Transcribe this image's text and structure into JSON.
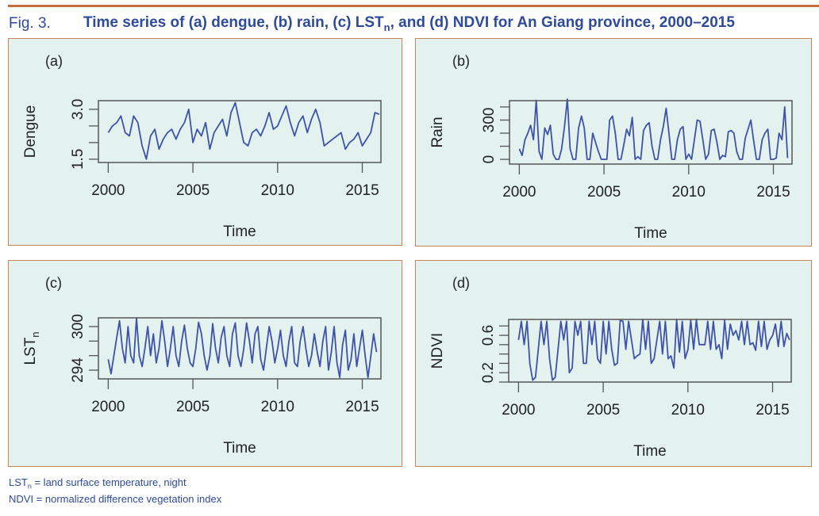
{
  "figure": {
    "label": "Fig. 3.",
    "title_parts": [
      "Time series of (a) dengue, (b) rain, (c) LST",
      "n",
      ", and (d) NDVI for An Giang province, 2000–2015"
    ],
    "footnotes": [
      {
        "term": "LST",
        "sub": "n",
        "text": " = land surface temperature, night"
      },
      {
        "term": "NDVI",
        "sub": "",
        "text": " = normalized difference vegetation index"
      }
    ]
  },
  "colors": {
    "line": "#3d52a8",
    "panel_bg": "#e3f1ef",
    "border": "#c88555",
    "title": "#2e4a9a"
  },
  "chart_data": [
    {
      "type": "line",
      "panel": "(a)",
      "xlabel": "Time",
      "ylabel": "Dengue",
      "x_start": 2000,
      "x_step": 0.25,
      "xlim": [
        1999.42,
        2016.1
      ],
      "xticks": [
        2000,
        2005,
        2010,
        2015
      ],
      "ylim": [
        1.4,
        3.26
      ],
      "yticks": [
        1.5,
        2.0,
        2.5,
        3.0
      ],
      "ytick_labels": [
        [
          "1.5",
          1.5
        ],
        [
          "3.0",
          3.0
        ]
      ],
      "values": [
        2.3,
        2.5,
        2.6,
        2.8,
        2.3,
        2.2,
        2.8,
        2.6,
        1.9,
        1.5,
        2.2,
        2.4,
        1.8,
        2.1,
        2.3,
        2.4,
        2.1,
        2.4,
        2.6,
        3.0,
        2.0,
        2.4,
        2.2,
        2.6,
        1.8,
        2.3,
        2.5,
        2.7,
        2.2,
        2.9,
        3.2,
        2.6,
        2.0,
        1.9,
        2.3,
        2.4,
        2.2,
        2.5,
        2.9,
        2.4,
        2.5,
        2.8,
        3.1,
        2.6,
        2.2,
        2.6,
        2.8,
        2.3,
        2.7,
        3.0,
        2.6,
        1.9,
        2.0,
        2.1,
        2.2,
        2.3,
        1.8,
        2.0,
        2.1,
        2.3,
        1.9,
        2.1,
        2.3,
        2.9,
        2.85
      ]
    },
    {
      "type": "line",
      "panel": "(b)",
      "xlabel": "Time",
      "ylabel": "Rain",
      "x_start": 2000,
      "x_step": 0.1667,
      "xlim": [
        1999.42,
        2016.1
      ],
      "xticks": [
        2000,
        2005,
        2010,
        2015
      ],
      "ylim": [
        -36,
        448
      ],
      "yticks": [
        0,
        100,
        200,
        300,
        400
      ],
      "ytick_labels": [
        [
          "0",
          0
        ],
        [
          "300",
          300
        ]
      ],
      "values": [
        80,
        30,
        150,
        200,
        260,
        150,
        450,
        60,
        0,
        240,
        190,
        260,
        40,
        0,
        0,
        80,
        250,
        460,
        80,
        0,
        0,
        240,
        330,
        240,
        0,
        0,
        200,
        130,
        60,
        0,
        0,
        0,
        300,
        330,
        200,
        0,
        0,
        110,
        230,
        180,
        320,
        0,
        20,
        0,
        220,
        260,
        280,
        100,
        0,
        0,
        150,
        250,
        390,
        200,
        0,
        0,
        150,
        230,
        250,
        0,
        40,
        0,
        150,
        300,
        290,
        150,
        0,
        40,
        220,
        230,
        130,
        0,
        30,
        20,
        210,
        220,
        200,
        60,
        0,
        0,
        160,
        230,
        300,
        140,
        0,
        0,
        150,
        200,
        230,
        0,
        0,
        10,
        200,
        150,
        400,
        10
      ]
    },
    {
      "type": "line",
      "panel": "(c)",
      "xlabel": "Time",
      "ylabel": "LST",
      "ylabel_sub": "n",
      "x_start": 2000,
      "x_step": 0.1667,
      "xlim": [
        1999.42,
        2016.1
      ],
      "xticks": [
        2000,
        2005,
        2010,
        2015
      ],
      "ylim": [
        292.8,
        301.2
      ],
      "yticks": [
        294,
        296,
        298,
        300
      ],
      "ytick_labels": [
        [
          "294",
          294
        ],
        [
          "300",
          300
        ]
      ],
      "values": [
        295.5,
        293.5,
        296,
        298.5,
        300.8,
        297,
        295,
        300,
        296,
        295,
        301.2,
        296,
        294.5,
        297,
        300,
        296,
        299,
        295,
        297,
        300.8,
        298,
        294.5,
        297,
        300,
        296,
        294.5,
        298,
        300.2,
        297,
        295,
        294.5,
        297,
        300.6,
        299,
        296,
        294,
        296,
        300.4,
        297,
        295,
        298.5,
        300,
        296,
        294.5,
        299,
        300.5,
        296,
        294.5,
        297,
        300.5,
        298,
        295,
        299,
        300,
        295.5,
        294,
        297,
        300,
        298,
        295,
        297,
        299.5,
        296,
        294.5,
        298,
        300,
        295,
        294.5,
        298,
        300,
        297,
        294.5,
        296,
        299,
        296.5,
        294.5,
        298,
        300,
        294,
        296.5,
        300,
        295,
        293,
        297.5,
        299.5,
        294,
        295.5,
        299,
        294.5,
        297,
        299.5,
        296,
        293,
        296,
        299,
        296.5
      ]
    },
    {
      "type": "line",
      "panel": "(d)",
      "xlabel": "Time",
      "ylabel": "NDVI",
      "x_start": 2000,
      "x_step": 0.1667,
      "xlim": [
        1999.42,
        2016.1
      ],
      "xticks": [
        2000,
        2005,
        2010,
        2015
      ],
      "ylim": [
        0.1,
        0.77
      ],
      "yticks": [
        0.1,
        0.2,
        0.3,
        0.4,
        0.5,
        0.6,
        0.7
      ],
      "ytick_labels": [
        [
          "0.2",
          0.2
        ],
        [
          "0.6",
          0.6
        ]
      ],
      "values": [
        0.55,
        0.75,
        0.5,
        0.75,
        0.3,
        0.12,
        0.15,
        0.45,
        0.75,
        0.5,
        0.75,
        0.35,
        0.12,
        0.15,
        0.45,
        0.75,
        0.55,
        0.75,
        0.2,
        0.25,
        0.75,
        0.6,
        0.75,
        0.3,
        0.3,
        0.75,
        0.5,
        0.75,
        0.35,
        0.3,
        0.75,
        0.4,
        0.75,
        0.45,
        0.28,
        0.3,
        0.76,
        0.75,
        0.45,
        0.75,
        0.55,
        0.35,
        0.38,
        0.4,
        0.77,
        0.45,
        0.75,
        0.3,
        0.35,
        0.55,
        0.75,
        0.4,
        0.75,
        0.35,
        0.38,
        0.25,
        0.77,
        0.42,
        0.75,
        0.35,
        0.45,
        0.76,
        0.45,
        0.77,
        0.5,
        0.5,
        0.5,
        0.75,
        0.45,
        0.75,
        0.45,
        0.5,
        0.35,
        0.76,
        0.45,
        0.72,
        0.6,
        0.65,
        0.55,
        0.75,
        0.5,
        0.75,
        0.5,
        0.52,
        0.44,
        0.75,
        0.48,
        0.75,
        0.45,
        0.55,
        0.6,
        0.72,
        0.48,
        0.75,
        0.48,
        0.62,
        0.55
      ]
    }
  ]
}
